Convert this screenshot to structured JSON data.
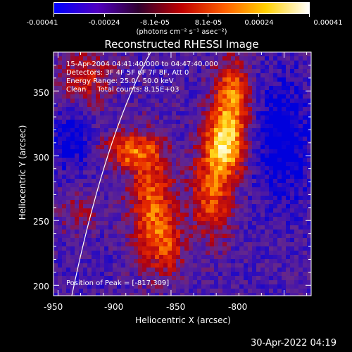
{
  "colorbar": {
    "tick_labels": [
      "-0.00041",
      "-0.00024",
      "-8.1e-05",
      "8.1e-05",
      "0.00024",
      "0.00041"
    ],
    "units": "(photons cm⁻² s⁻¹ asec⁻²)",
    "colors": [
      "#0000ff",
      "#5000c0",
      "#300030",
      "#c00000",
      "#ff6000",
      "#ffd000",
      "#ffffff"
    ]
  },
  "title": "Reconstructed RHESSI Image",
  "info_lines": [
    "15-Apr-2004 04:41:40.000 to 04:47:40.000",
    "Detectors: 3F 4F 5F 6F 7F 8F, Att 0",
    "Energy Range: 25.0 - 50.0 keV",
    "Clean     Total counts: 8.15E+03"
  ],
  "peak_label": "Position of Peak = [-817,309]",
  "x_axis": {
    "label": "Heliocentric X (arcsec)",
    "ticks": [
      "-950",
      "-900",
      "-850",
      "-800"
    ],
    "values": [
      -950,
      -900,
      -850,
      -800
    ],
    "range": [
      -952,
      -838
    ]
  },
  "y_axis": {
    "label": "Heliocentric Y (arcsec)",
    "ticks": [
      "200",
      "250",
      "300",
      "350"
    ],
    "values": [
      200,
      250,
      300,
      350
    ],
    "range": [
      192,
      380
    ]
  },
  "timestamp": "30-Apr-2022 04:19"
}
